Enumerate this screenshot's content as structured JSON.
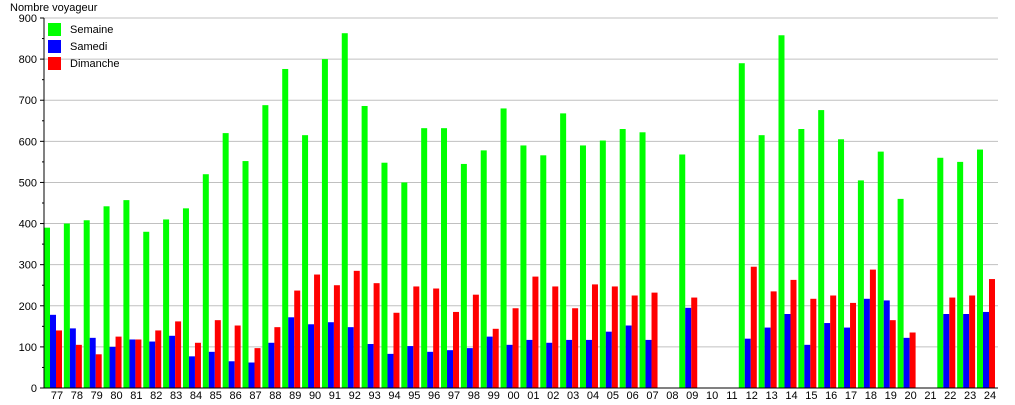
{
  "chart_data": {
    "type": "bar",
    "title": "",
    "ylabel": "Nombre voyageur",
    "xlabel": "",
    "ylim": [
      0,
      900
    ],
    "yticks": [
      0,
      100,
      200,
      300,
      400,
      500,
      600,
      700,
      800,
      900
    ],
    "grid": true,
    "legend_position": "top-left",
    "categories": [
      "77",
      "78",
      "79",
      "80",
      "81",
      "82",
      "83",
      "84",
      "85",
      "86",
      "87",
      "88",
      "89",
      "90",
      "91",
      "92",
      "93",
      "94",
      "95",
      "96",
      "97",
      "98",
      "99",
      "00",
      "01",
      "02",
      "03",
      "04",
      "05",
      "06",
      "07",
      "08",
      "09",
      "10",
      "11",
      "12",
      "13",
      "14",
      "15",
      "16",
      "17",
      "18",
      "19",
      "20",
      "21",
      "22",
      "23",
      "24"
    ],
    "series": [
      {
        "name": "Semaine",
        "color": "#00ff00",
        "values": [
          390,
          400,
          408,
          442,
          457,
          380,
          410,
          437,
          520,
          620,
          552,
          688,
          776,
          615,
          800,
          863,
          686,
          548,
          500,
          632,
          632,
          545,
          578,
          680,
          590,
          566,
          668,
          590,
          602,
          630,
          622,
          null,
          568,
          null,
          null,
          790,
          615,
          858,
          630,
          676,
          605,
          505,
          575,
          460,
          null,
          560,
          550,
          580
        ]
      },
      {
        "name": "Samedi",
        "color": "#0000ff",
        "values": [
          178,
          145,
          122,
          100,
          118,
          113,
          127,
          77,
          88,
          65,
          62,
          110,
          172,
          155,
          160,
          148,
          107,
          83,
          102,
          88,
          92,
          97,
          125,
          105,
          117,
          110,
          117,
          117,
          137,
          152,
          117,
          null,
          195,
          null,
          null,
          120,
          147,
          180,
          105,
          158,
          147,
          217,
          213,
          122,
          null,
          180,
          180,
          185
        ]
      },
      {
        "name": "Dimanche",
        "color": "#ff0000",
        "values": [
          140,
          105,
          82,
          125,
          118,
          140,
          162,
          110,
          165,
          152,
          97,
          148,
          237,
          276,
          250,
          285,
          255,
          183,
          247,
          242,
          185,
          227,
          144,
          194,
          271,
          247,
          194,
          252,
          247,
          225,
          232,
          null,
          220,
          null,
          null,
          295,
          235,
          263,
          217,
          225,
          207,
          288,
          165,
          135,
          null,
          220,
          225,
          265
        ]
      }
    ]
  }
}
